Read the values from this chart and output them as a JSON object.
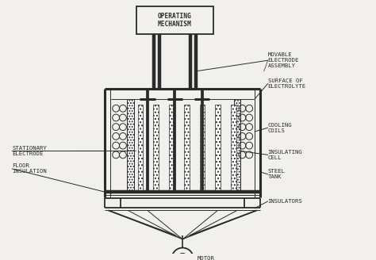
{
  "bg_color": "#f2f0ed",
  "line_color": "#2a2a2a",
  "label_color": "#2a2a2a",
  "labels": {
    "operating_mechanism": "OPERATING\nMECHANISM",
    "movable_electrode": "MOVABLE\nELECTRODE\nASSEMBLY",
    "surface_electrolyte": "SURFACE OF\nELECTROLYTE",
    "cooling_coils": "COOLING\nCOILS",
    "insulating_cell": "INSULATING\nCELL",
    "steel_tank": "STEEL\nTANK",
    "stationary_electrode": "STATIONARY\nELECTRODE",
    "floor_insulation": "FLOOR\nINSULATION",
    "insulators": "INSULATORS",
    "motor": "MOTOR"
  },
  "font_size": 5.2
}
